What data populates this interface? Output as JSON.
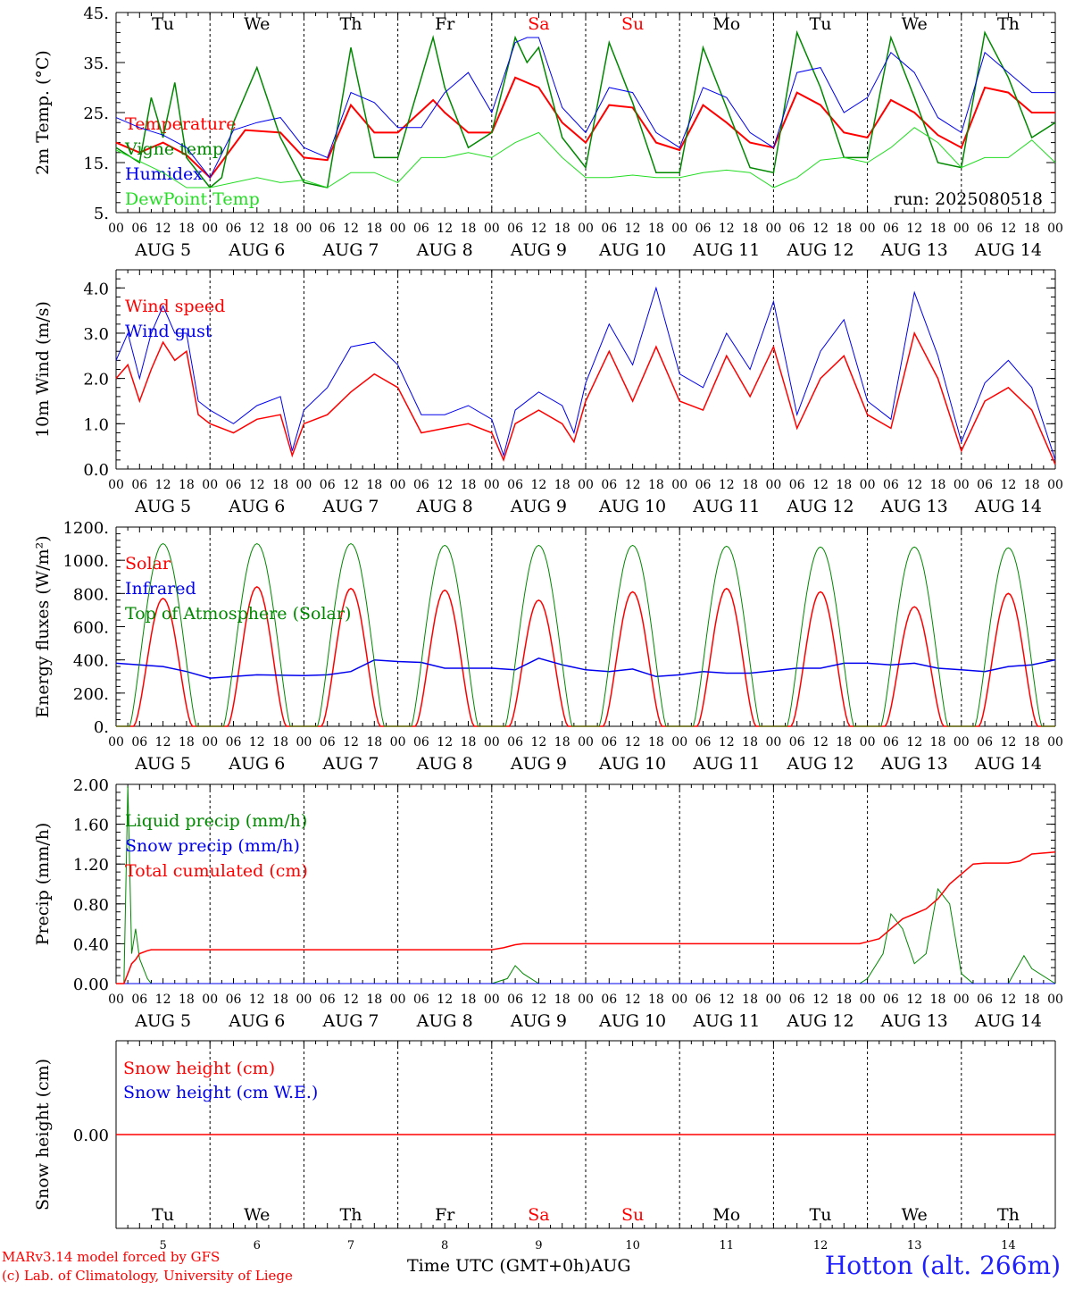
{
  "colors": {
    "red": "#ff0000",
    "green": "#008800",
    "lime": "#22dd22",
    "blue": "#0000ee",
    "black": "#000000",
    "station": "#2020ff"
  },
  "days": {
    "weekdays": [
      "Tu",
      "We",
      "Th",
      "Fr",
      "Sa",
      "Su",
      "Mo",
      "Tu",
      "We",
      "Th"
    ],
    "weekend_index": [
      4,
      5
    ],
    "dates": [
      "AUG  5",
      "AUG  6",
      "AUG  7",
      "AUG  8",
      "AUG  9",
      "AUG 10",
      "AUG 11",
      "AUG 12",
      "AUG 13",
      "AUG 14"
    ],
    "day_numbers": [
      "5",
      "6",
      "7",
      "8",
      "9",
      "10",
      "11",
      "12",
      "13",
      "14"
    ],
    "hour_ticks": [
      "00",
      "06",
      "12",
      "18"
    ],
    "end_hour_tick": "00"
  },
  "footer": {
    "model": "MARv3.14 model forced by GFS",
    "lab": "(c) Lab. of Climatology, University of Liege",
    "time_axis": "Time UTC (GMT+0h)AUG",
    "station": "Hotton (alt. 266m)"
  },
  "chart_data": [
    {
      "type": "line",
      "ylabel": "2m Temp. (°C)",
      "ylim": [
        5,
        45
      ],
      "yticks": [
        5,
        15,
        25,
        35,
        45
      ],
      "ytick_labels": [
        "5.",
        "15.",
        "25.",
        "35.",
        "45."
      ],
      "annotation": "run: 2025080518",
      "x_unit": "hours since AUG 5 00 UTC",
      "series": [
        {
          "name": "Temperature",
          "color": "#ff0000",
          "width": 2,
          "x": [
            0,
            6,
            12,
            18,
            24,
            33,
            42,
            48,
            54,
            60,
            66,
            72,
            81,
            84,
            90,
            96,
            102,
            108,
            114,
            120,
            126,
            132,
            138,
            144,
            150,
            156,
            162,
            168,
            174,
            180,
            186,
            192,
            198,
            204,
            210,
            216,
            222,
            228,
            234,
            240
          ],
          "y": [
            19,
            17,
            19,
            16.5,
            12,
            21.5,
            21,
            16,
            15.5,
            26.5,
            21,
            21,
            27.5,
            25,
            21,
            21,
            32,
            30,
            23,
            19,
            26.5,
            26,
            19,
            17.5,
            26.5,
            23,
            19,
            18,
            29,
            26.5,
            21,
            20,
            27.5,
            25,
            20.5,
            18,
            30,
            29,
            25,
            25
          ]
        },
        {
          "name": "Vigne temp",
          "color": "#008800",
          "width": 1.5,
          "x": [
            0,
            6,
            9,
            12,
            15,
            18,
            24,
            27,
            30,
            36,
            42,
            48,
            54,
            60,
            66,
            72,
            81,
            84,
            90,
            96,
            102,
            105,
            108,
            114,
            120,
            126,
            132,
            138,
            144,
            150,
            156,
            162,
            168,
            174,
            180,
            186,
            192,
            198,
            204,
            210,
            216,
            222,
            228,
            234,
            240
          ],
          "y": [
            18,
            15,
            28,
            20,
            31,
            16,
            10,
            12,
            23,
            34,
            20,
            11,
            10,
            38,
            16,
            16,
            40,
            30,
            18,
            21,
            40,
            35,
            38,
            20,
            14,
            39,
            27,
            13,
            13,
            38,
            26,
            14,
            13,
            41,
            30,
            16,
            16,
            40,
            28,
            15,
            14,
            41,
            32,
            20,
            23
          ]
        },
        {
          "name": "Humidex",
          "color": "#0000ee",
          "width": 1,
          "x": [
            0,
            6,
            12,
            18,
            24,
            30,
            36,
            42,
            48,
            54,
            60,
            66,
            72,
            78,
            84,
            90,
            96,
            102,
            105,
            108,
            114,
            120,
            126,
            132,
            138,
            144,
            150,
            156,
            162,
            168,
            174,
            180,
            186,
            192,
            198,
            204,
            210,
            216,
            222,
            228,
            234,
            240
          ],
          "y": [
            24,
            22,
            20.5,
            18,
            12,
            21.5,
            23,
            24,
            18,
            16,
            29,
            27,
            22,
            22,
            29,
            33,
            25,
            39,
            40,
            40,
            26,
            21,
            30,
            29,
            21,
            18,
            30,
            28,
            21,
            18,
            33,
            34,
            25,
            28,
            37,
            33,
            24,
            21,
            37,
            33,
            29,
            29
          ]
        },
        {
          "name": "DewPoint Temp",
          "color": "#22dd22",
          "width": 1,
          "x": [
            0,
            12,
            18,
            24,
            30,
            36,
            42,
            48,
            54,
            60,
            66,
            72,
            78,
            84,
            90,
            96,
            102,
            108,
            114,
            120,
            126,
            132,
            138,
            144,
            150,
            156,
            162,
            168,
            174,
            180,
            186,
            192,
            198,
            204,
            210,
            216,
            222,
            228,
            234,
            240
          ],
          "y": [
            17.5,
            13,
            10,
            10,
            11,
            12,
            11,
            11.5,
            10,
            13,
            13,
            11,
            16,
            16,
            17,
            16,
            19,
            21,
            16,
            12,
            12,
            12.5,
            12,
            12,
            13,
            13.5,
            13,
            10,
            12,
            15.5,
            16,
            15,
            18,
            22,
            19,
            14,
            16,
            16,
            19.5,
            15
          ]
        }
      ]
    },
    {
      "type": "line",
      "ylabel": "10m Wind (m/s)",
      "ylim": [
        0,
        4.4
      ],
      "yticks": [
        0,
        1,
        2,
        3,
        4
      ],
      "ytick_labels": [
        "0.0",
        "1.0",
        "2.0",
        "3.0",
        "4.0"
      ],
      "x_unit": "hours since AUG 5 00 UTC",
      "series": [
        {
          "name": "Wind speed",
          "color": "#ff0000",
          "width": 1.5,
          "x": [
            0,
            3,
            6,
            9,
            12,
            15,
            18,
            21,
            24,
            30,
            36,
            42,
            45,
            48,
            54,
            60,
            66,
            72,
            78,
            84,
            90,
            96,
            99,
            102,
            108,
            114,
            117,
            120,
            126,
            132,
            138,
            144,
            150,
            156,
            162,
            168,
            174,
            180,
            186,
            192,
            198,
            204,
            210,
            216,
            222,
            228,
            234,
            240
          ],
          "y": [
            2.0,
            2.3,
            1.5,
            2.2,
            2.8,
            2.4,
            2.6,
            1.2,
            1.0,
            0.8,
            1.1,
            1.2,
            0.3,
            1.0,
            1.2,
            1.7,
            2.1,
            1.8,
            0.8,
            0.9,
            1.0,
            0.8,
            0.2,
            1.0,
            1.3,
            1.0,
            0.6,
            1.5,
            2.6,
            1.5,
            2.7,
            1.5,
            1.3,
            2.5,
            1.6,
            2.7,
            0.9,
            2.0,
            2.5,
            1.2,
            0.9,
            3.0,
            2.0,
            0.4,
            1.5,
            1.8,
            1.3,
            0.1
          ]
        },
        {
          "name": "Wind gust",
          "color": "#0000ee",
          "width": 1,
          "x": [
            0,
            3,
            6,
            9,
            12,
            15,
            18,
            21,
            24,
            30,
            36,
            42,
            45,
            48,
            54,
            60,
            66,
            72,
            78,
            84,
            90,
            96,
            99,
            102,
            108,
            114,
            117,
            120,
            126,
            132,
            138,
            144,
            150,
            156,
            162,
            168,
            174,
            180,
            186,
            192,
            198,
            204,
            210,
            216,
            222,
            228,
            234,
            240
          ],
          "y": [
            2.4,
            3.0,
            2.0,
            3.0,
            3.6,
            3.0,
            3.0,
            1.5,
            1.3,
            1.0,
            1.4,
            1.6,
            0.4,
            1.3,
            1.8,
            2.7,
            2.8,
            2.3,
            1.2,
            1.2,
            1.4,
            1.1,
            0.3,
            1.3,
            1.7,
            1.4,
            0.8,
            1.9,
            3.2,
            2.3,
            4.0,
            2.1,
            1.8,
            3.0,
            2.2,
            3.7,
            1.2,
            2.6,
            3.3,
            1.5,
            1.1,
            3.9,
            2.5,
            0.6,
            1.9,
            2.4,
            1.8,
            0.2
          ]
        }
      ]
    },
    {
      "type": "line",
      "ylabel": "Energy fluxes (W/m²)",
      "ylim": [
        0,
        1200
      ],
      "yticks": [
        0,
        200,
        400,
        600,
        800,
        1000,
        1200
      ],
      "ytick_labels": [
        "0.",
        "200.",
        "400.",
        "600.",
        "800.",
        "1000.",
        "1200."
      ],
      "x_unit": "hours since AUG 5 00 UTC",
      "series": [
        {
          "name": "Solar",
          "color": "#ff0000",
          "width": 1.5,
          "peaks": [
            770,
            840,
            830,
            820,
            760,
            810,
            830,
            810,
            720,
            800
          ]
        },
        {
          "name": "Infrared",
          "color": "#0000ee",
          "width": 1.5,
          "x": [
            0,
            12,
            18,
            24,
            30,
            36,
            48,
            54,
            60,
            66,
            72,
            78,
            84,
            90,
            96,
            102,
            108,
            114,
            120,
            126,
            132,
            138,
            144,
            150,
            156,
            162,
            168,
            174,
            180,
            186,
            192,
            198,
            204,
            210,
            216,
            222,
            228,
            234,
            240
          ],
          "y": [
            380,
            360,
            330,
            290,
            300,
            310,
            305,
            310,
            330,
            400,
            390,
            385,
            350,
            350,
            350,
            340,
            410,
            370,
            340,
            330,
            345,
            300,
            310,
            330,
            320,
            320,
            335,
            350,
            350,
            380,
            380,
            370,
            380,
            350,
            340,
            330,
            360,
            370,
            400
          ]
        },
        {
          "name": "Top of Atmosphere (Solar)",
          "color": "#008800",
          "width": 1,
          "peaks": [
            1100,
            1100,
            1100,
            1090,
            1090,
            1090,
            1085,
            1080,
            1080,
            1075
          ]
        }
      ]
    },
    {
      "type": "line",
      "ylabel": "Precip (mm/h)",
      "ylim": [
        0,
        2
      ],
      "yticks": [
        0,
        0.4,
        0.8,
        1.2,
        1.6,
        2.0
      ],
      "ytick_labels": [
        "0.00",
        "0.40",
        "0.80",
        "1.20",
        "1.60",
        "2.00"
      ],
      "x_unit": "hours since AUG 5 00 UTC",
      "series": [
        {
          "name": "Liquid precip (mm/h)",
          "color": "#008800",
          "width": 1,
          "x": [
            0,
            2,
            3,
            4,
            5,
            6,
            7,
            8,
            9,
            12,
            96,
            100,
            102,
            104,
            108,
            190,
            192,
            196,
            198,
            201,
            204,
            207,
            210,
            213,
            216,
            219,
            222,
            228,
            232,
            234,
            240
          ],
          "y": [
            0,
            0,
            1.98,
            0.3,
            0.55,
            0.25,
            0.15,
            0.05,
            0,
            0,
            0,
            0.05,
            0.18,
            0.1,
            0,
            0,
            0.05,
            0.3,
            0.7,
            0.55,
            0.2,
            0.3,
            0.95,
            0.8,
            0.1,
            0,
            0,
            0,
            0.28,
            0.15,
            0
          ]
        },
        {
          "name": "Snow precip (mm/h)",
          "color": "#0000ee",
          "width": 1,
          "x": [
            0,
            240
          ],
          "y": [
            0,
            0
          ]
        },
        {
          "name": "Total cumulated (cm)",
          "color": "#ff0000",
          "width": 1.5,
          "x": [
            0,
            2,
            3,
            4,
            5,
            6,
            8,
            9,
            12,
            96,
            99,
            102,
            104,
            108,
            190,
            192,
            195,
            198,
            201,
            204,
            207,
            210,
            213,
            216,
            219,
            222,
            228,
            231,
            234,
            240
          ],
          "y": [
            0,
            0,
            0.1,
            0.2,
            0.24,
            0.3,
            0.33,
            0.34,
            0.34,
            0.34,
            0.36,
            0.39,
            0.4,
            0.4,
            0.4,
            0.42,
            0.45,
            0.55,
            0.65,
            0.7,
            0.75,
            0.85,
            1.0,
            1.1,
            1.2,
            1.21,
            1.21,
            1.23,
            1.3,
            1.32
          ]
        }
      ]
    },
    {
      "type": "line",
      "ylabel": "Snow height (cm)",
      "ylim": [
        -1,
        1
      ],
      "yticks": [
        0
      ],
      "ytick_labels": [
        "0.00"
      ],
      "x_unit": "hours since AUG 5 00 UTC",
      "series": [
        {
          "name": "Snow height (cm)",
          "color": "#ff0000",
          "width": 1.5,
          "x": [
            0,
            240
          ],
          "y": [
            0,
            0
          ]
        },
        {
          "name": "Snow height (cm W.E.)",
          "color": "#0000ee",
          "width": 1,
          "x": [],
          "y": []
        }
      ]
    }
  ]
}
